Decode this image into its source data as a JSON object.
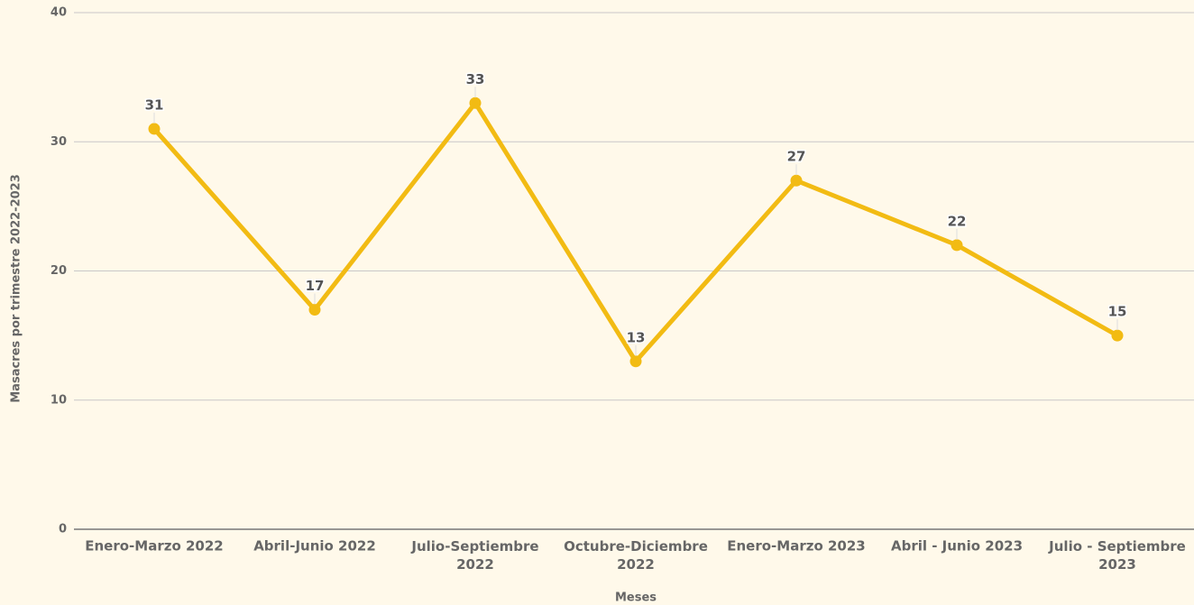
{
  "chart_data": {
    "type": "line",
    "x_label": "Meses",
    "y_label": "Masacres por trimestre 2022-2023",
    "categories": [
      "Enero-Marzo 2022",
      "Abril-Junio 2022",
      "Julio-Septiembre 2022",
      "Octubre-Diciembre 2022",
      "Enero-Marzo 2023",
      "Abril - Junio 2023",
      "Julio - Septiembre 2023"
    ],
    "series": [
      {
        "name": "Masacres",
        "color": "#f2bb13",
        "values": [
          31,
          17,
          33,
          13,
          27,
          22,
          15
        ]
      }
    ],
    "ylim": [
      0,
      40
    ],
    "yticks": [
      0,
      10,
      20,
      30,
      40
    ],
    "grid": true
  }
}
